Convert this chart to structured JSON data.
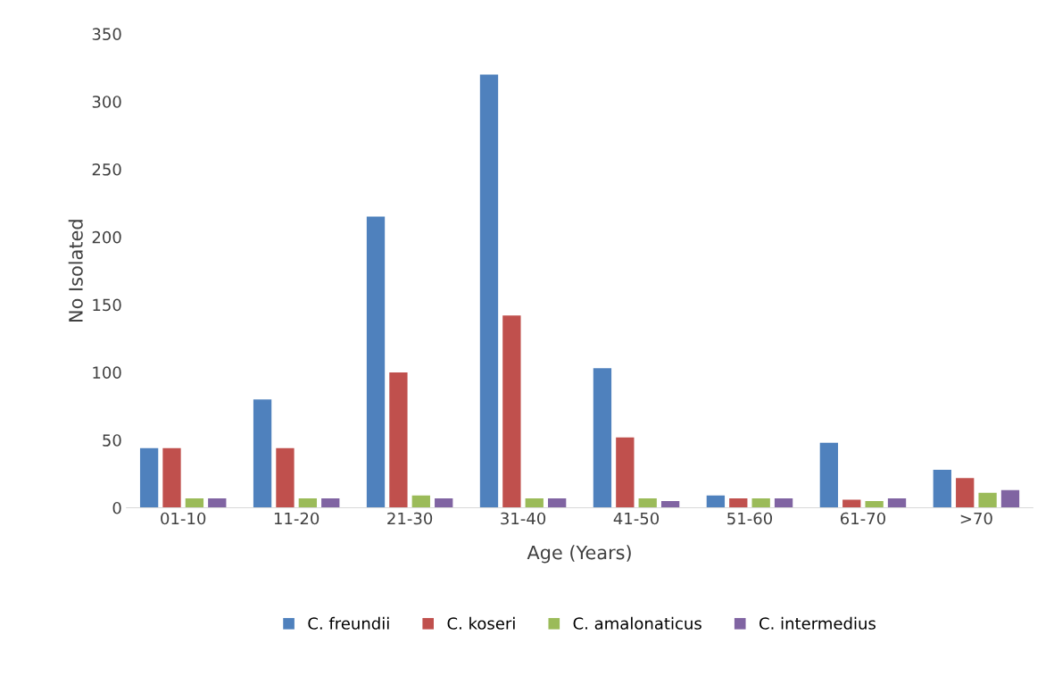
{
  "chart_data": {
    "type": "bar",
    "xlabel": "Age (Years)",
    "ylabel": "No Isolated",
    "categories": [
      "01-10",
      "11-20",
      "21-30",
      "31-40",
      "41-50",
      "51-60",
      "61-70",
      ">70"
    ],
    "series": [
      {
        "name": "C. freundii",
        "color": "#4f81bd",
        "values": [
          44,
          80,
          215,
          320,
          103,
          9,
          48,
          28
        ]
      },
      {
        "name": "C. koseri",
        "color": "#c0504d",
        "values": [
          44,
          44,
          100,
          142,
          52,
          7,
          6,
          22
        ]
      },
      {
        "name": "C. amalonaticus",
        "color": "#9bbb59",
        "values": [
          7,
          7,
          9,
          7,
          7,
          7,
          5,
          11
        ]
      },
      {
        "name": "C. intermedius",
        "color": "#8064a2",
        "values": [
          7,
          7,
          7,
          7,
          5,
          7,
          7,
          13
        ]
      }
    ],
    "ylim": [
      0,
      350
    ],
    "yticks": [
      0,
      50,
      100,
      150,
      200,
      250,
      300,
      350
    ],
    "grid": false,
    "legend": "bottom"
  }
}
